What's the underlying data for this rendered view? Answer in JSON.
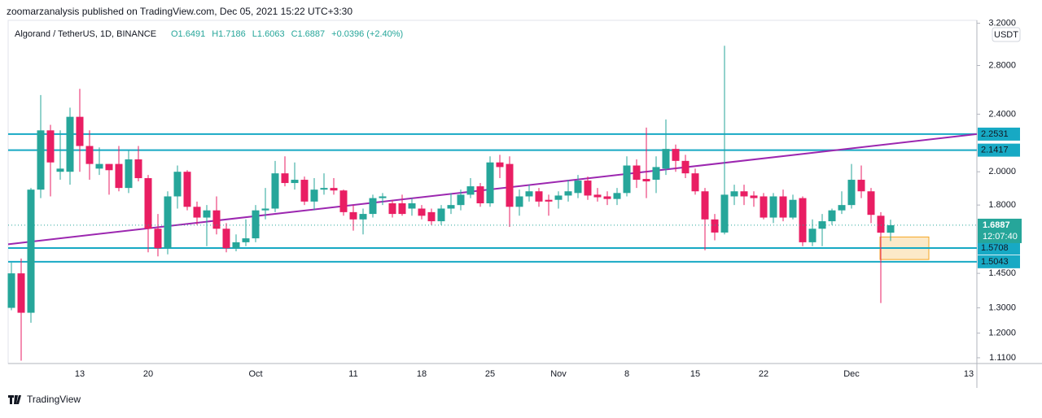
{
  "header": "zoomarzanalysis published on TradingView.com, Dec 05, 2021 15:22 UTC+3:30",
  "footer": "TradingView",
  "chart_data": {
    "type": "candlestick",
    "title": "Algorand / TetherUS, 1D, BINANCE",
    "ohlc_labels": [
      "O1.6491",
      "H1.7186",
      "L1.6063",
      "C1.6887",
      "+0.0396 (+2.40%)"
    ],
    "currency": "USDT",
    "countdown": "12:07:40",
    "categories": [
      null,
      null,
      null,
      null,
      null,
      null,
      null,
      "13",
      null,
      null,
      null,
      null,
      null,
      null,
      "20",
      null,
      null,
      null,
      null,
      null,
      null,
      null,
      null,
      null,
      null,
      "Oct",
      null,
      null,
      null,
      null,
      null,
      null,
      null,
      null,
      null,
      "11",
      null,
      null,
      null,
      null,
      null,
      null,
      "18",
      null,
      null,
      null,
      null,
      null,
      null,
      "25",
      null,
      null,
      null,
      null,
      null,
      null,
      "Nov",
      null,
      null,
      null,
      null,
      null,
      null,
      "8",
      null,
      null,
      null,
      null,
      null,
      null,
      "15",
      null,
      null,
      null,
      null,
      null,
      null,
      "22",
      null,
      null,
      null,
      null,
      null,
      null,
      null,
      null,
      "Dec",
      null,
      null,
      null,
      null,
      null,
      null,
      null,
      null,
      null,
      null,
      null,
      "13"
    ],
    "open": [
      1.3,
      1.45,
      1.28,
      1.89,
      2.28,
      2.0,
      2.0,
      2.38,
      2.17,
      2.02,
      2.05,
      2.05,
      1.9,
      2.08,
      1.96,
      1.67,
      1.57,
      1.85,
      2.0,
      1.79,
      1.73,
      1.77,
      1.67,
      1.57,
      1.6,
      1.62,
      1.77,
      1.78,
      1.99,
      1.93,
      1.95,
      1.82,
      1.89,
      1.9,
      1.885,
      1.76,
      1.72,
      1.75,
      1.84,
      1.81,
      1.81,
      1.78,
      1.78,
      1.76,
      1.71,
      1.78,
      1.8,
      1.86,
      1.91,
      1.81,
      2.06,
      2.05,
      1.79,
      1.85,
      1.88,
      1.83,
      1.83,
      1.855,
      1.87,
      1.945,
      1.86,
      1.85,
      1.835,
      1.87,
      2.04,
      1.955,
      1.95,
      2.02,
      2.15,
      2.07,
      1.99,
      1.88,
      1.72,
      1.65,
      1.85,
      1.88,
      1.855,
      1.85,
      1.73,
      1.85,
      1.73,
      1.84,
      1.6,
      1.67,
      1.71,
      1.77,
      1.8,
      1.95,
      1.88,
      1.74,
      1.6491,
      null,
      null,
      null,
      null,
      null,
      null,
      null,
      null
    ],
    "high": [
      1.5,
      1.52,
      1.9,
      2.55,
      2.32,
      2.28,
      2.45,
      2.6,
      2.28,
      2.16,
      2.05,
      2.17,
      2.14,
      2.17,
      1.98,
      1.75,
      1.88,
      2.04,
      2.01,
      1.82,
      1.8,
      1.85,
      1.7,
      1.64,
      1.72,
      1.8,
      1.9,
      2.07,
      2.1,
      2.06,
      1.97,
      1.96,
      1.99,
      1.96,
      1.89,
      1.8,
      1.78,
      1.86,
      1.87,
      1.83,
      1.86,
      1.84,
      1.8,
      1.78,
      1.8,
      1.87,
      1.89,
      1.96,
      1.93,
      2.1,
      2.11,
      2.1,
      1.89,
      1.92,
      1.9,
      1.86,
      1.88,
      1.95,
      1.98,
      1.97,
      1.9,
      1.88,
      1.9,
      2.1,
      2.08,
      2.3,
      2.1,
      2.36,
      2.18,
      2.11,
      2.02,
      1.9,
      1.75,
      2.98,
      1.92,
      1.92,
      1.88,
      1.87,
      1.87,
      1.89,
      1.86,
      1.85,
      1.72,
      1.75,
      1.78,
      1.88,
      2.05,
      2.04,
      1.9,
      1.76,
      1.7186,
      null,
      null,
      null,
      null,
      null,
      null,
      null,
      null
    ],
    "low": [
      1.29,
      1.1,
      1.24,
      1.84,
      1.85,
      1.95,
      1.92,
      2.0,
      1.95,
      1.98,
      1.86,
      1.88,
      1.87,
      1.94,
      1.55,
      1.53,
      1.54,
      1.78,
      1.77,
      1.69,
      1.58,
      1.64,
      1.55,
      1.555,
      1.58,
      1.6,
      1.72,
      1.76,
      1.91,
      1.89,
      1.8,
      1.77,
      1.86,
      1.86,
      1.74,
      1.66,
      1.64,
      1.73,
      1.8,
      1.73,
      1.74,
      1.74,
      1.72,
      1.69,
      1.69,
      1.75,
      1.77,
      1.84,
      1.79,
      1.79,
      1.96,
      1.68,
      1.74,
      1.82,
      1.79,
      1.74,
      1.78,
      1.82,
      1.84,
      1.83,
      1.82,
      1.8,
      1.8,
      1.85,
      1.9,
      1.84,
      1.87,
      1.98,
      2.0,
      1.96,
      1.86,
      1.56,
      1.61,
      1.64,
      1.8,
      1.8,
      1.79,
      1.72,
      1.7,
      1.71,
      1.72,
      1.58,
      1.58,
      1.58,
      1.69,
      1.75,
      1.78,
      1.84,
      1.7,
      1.32,
      1.6063,
      null,
      null,
      null,
      null,
      null,
      null,
      null,
      null
    ],
    "close": [
      1.45,
      1.28,
      1.89,
      2.28,
      2.06,
      2.02,
      2.38,
      2.17,
      2.05,
      2.05,
      2.01,
      1.9,
      2.08,
      1.96,
      1.67,
      1.57,
      1.85,
      2.0,
      1.79,
      1.73,
      1.77,
      1.67,
      1.57,
      1.6,
      1.62,
      1.77,
      1.78,
      1.99,
      1.93,
      1.95,
      1.82,
      1.89,
      1.9,
      1.885,
      1.76,
      1.72,
      1.75,
      1.84,
      1.85,
      1.75,
      1.75,
      1.81,
      1.74,
      1.71,
      1.78,
      1.8,
      1.86,
      1.91,
      1.81,
      2.06,
      2.03,
      1.79,
      1.85,
      1.88,
      1.82,
      1.82,
      1.855,
      1.88,
      1.945,
      1.855,
      1.845,
      1.835,
      1.87,
      2.04,
      1.95,
      1.94,
      2.03,
      2.15,
      2.07,
      1.99,
      1.88,
      1.72,
      1.65,
      1.86,
      1.88,
      1.85,
      1.84,
      1.73,
      1.85,
      1.73,
      1.83,
      1.6,
      1.67,
      1.71,
      1.77,
      1.8,
      1.95,
      1.88,
      1.745,
      1.6491,
      1.6887,
      null,
      null,
      null,
      null,
      null,
      null,
      null,
      null
    ],
    "up_color": "#26a69a",
    "down_color": "#e91e63",
    "log_scale": true,
    "ylim": [
      1.09,
      3.23
    ],
    "yticks": [
      {
        "value": 1.11,
        "label": "1.1100"
      },
      {
        "value": 1.2,
        "label": "1.2000"
      },
      {
        "value": 1.3,
        "label": "1.3000"
      },
      {
        "value": 1.45,
        "label": "1.4500"
      },
      {
        "value": 1.8,
        "label": "1.8000"
      },
      {
        "value": 2.0,
        "label": "2.0000"
      },
      {
        "value": 2.4,
        "label": "2.4000"
      },
      {
        "value": 2.8,
        "label": "2.8000"
      },
      {
        "value": 3.2,
        "label": "3.2000"
      }
    ],
    "levels": [
      2.2531,
      2.1417,
      1.5708,
      1.5043
    ],
    "level_color": "#17a9c4",
    "trend_line": {
      "values": [
        1.59,
        2.2531
      ],
      "color": "#9c27b0"
    },
    "zone": {
      "values": [
        1.515,
        1.627
      ],
      "color": "#f5a623"
    }
  }
}
